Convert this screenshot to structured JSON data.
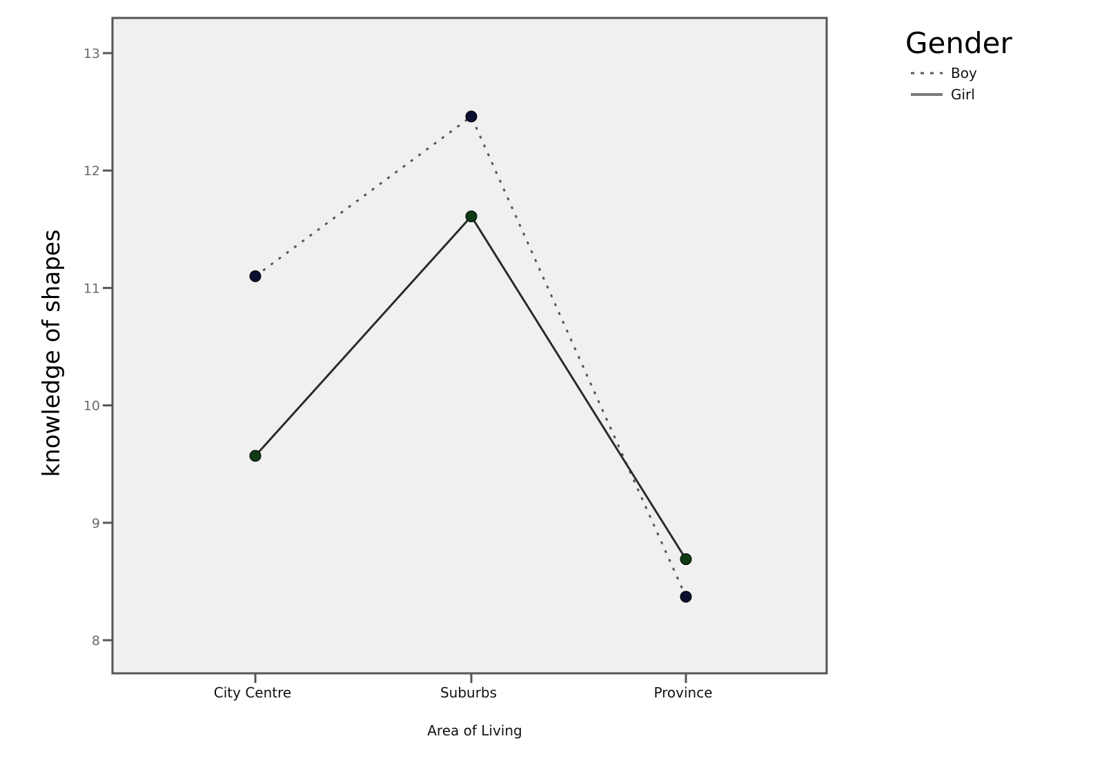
{
  "chart_data": {
    "type": "line",
    "xlabel": "Area of Living",
    "ylabel": "knowledge of shapes",
    "categories": [
      "City Centre",
      "Suburbs",
      "Province"
    ],
    "ylim": [
      7.6,
      13.3
    ],
    "yticks": [
      8,
      9,
      10,
      11,
      12,
      13
    ],
    "grid": false,
    "legend": {
      "title": "Gender",
      "position": "top-right outside"
    },
    "series": [
      {
        "name": "Boy",
        "values": [
          11.1,
          12.46,
          8.37
        ],
        "line_style": "dotted",
        "line_color": "#555555",
        "marker_color": "#0b1030"
      },
      {
        "name": "Girl",
        "values": [
          9.57,
          11.61,
          8.69
        ],
        "line_style": "solid",
        "line_color": "#2a2a2a",
        "marker_color": "#0d3a12"
      }
    ],
    "colors": {
      "plot_background": "#f0f0f0",
      "frame": "#555555"
    }
  }
}
